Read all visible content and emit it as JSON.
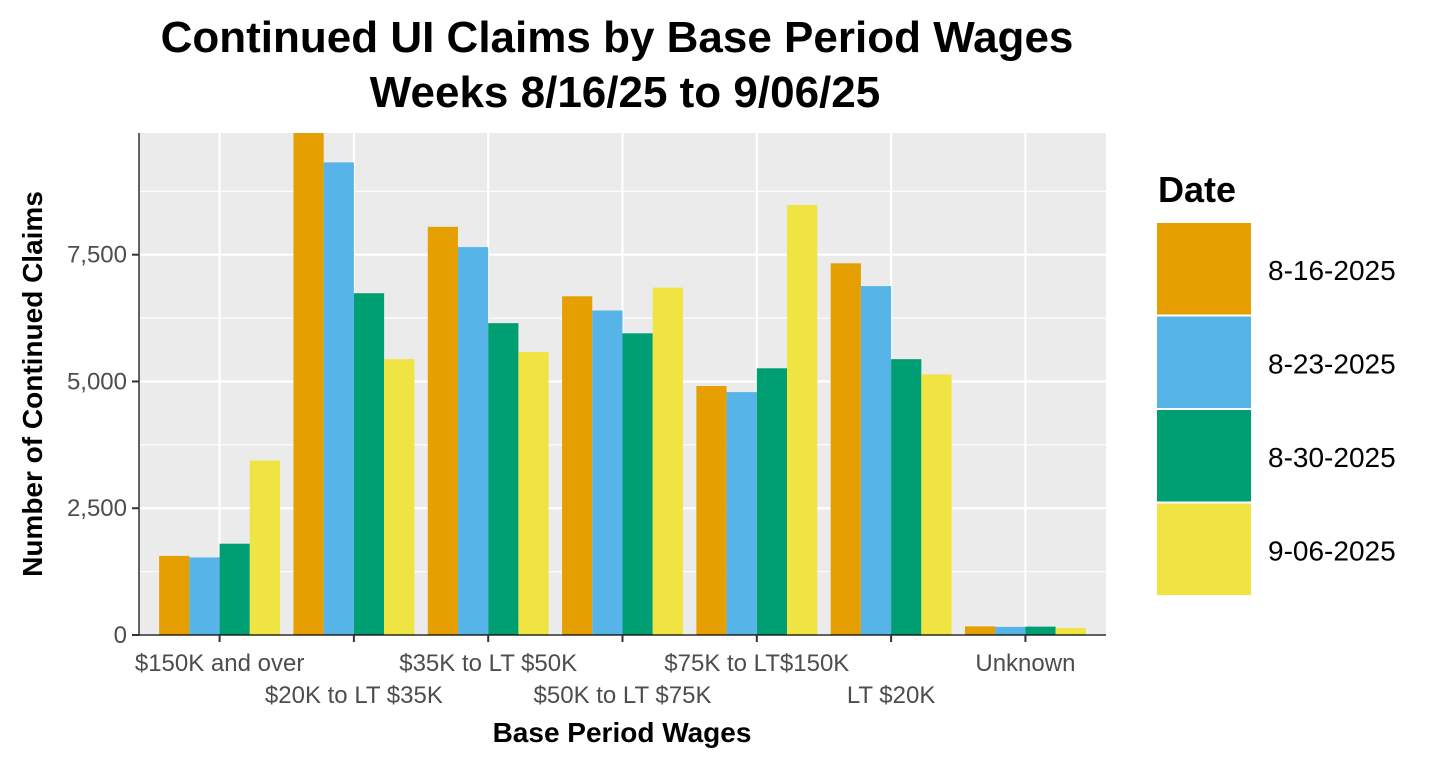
{
  "chart_data": {
    "type": "bar",
    "title": "Continued UI Claims by Base Period Wages",
    "subtitle": "Weeks 8/16/25 to 9/06/25",
    "xlabel": "Base Period Wages",
    "ylabel": "Number of Continued Claims",
    "ylim": [
      0,
      9900
    ],
    "yticks": [
      0,
      2500,
      5000,
      7500
    ],
    "ytick_labels": [
      "0",
      "2,500",
      "5,000",
      "7,500"
    ],
    "grid": true,
    "legend": {
      "title": "Date",
      "position": "right"
    },
    "categories": [
      "$150K and over",
      "$20K to LT $35K",
      "$35K to LT $50K",
      "$50K to LT $75K",
      "$75K to LT$150K",
      "LT $20K",
      "Unknown"
    ],
    "series": [
      {
        "name": "8-16-2025",
        "color": "#E69F00",
        "values": [
          1560,
          9900,
          8050,
          6680,
          4910,
          7330,
          170
        ]
      },
      {
        "name": "8-23-2025",
        "color": "#56B4E9",
        "values": [
          1530,
          9320,
          7650,
          6400,
          4790,
          6880,
          160
        ]
      },
      {
        "name": "8-30-2025",
        "color": "#009E73",
        "values": [
          1800,
          6740,
          6150,
          5950,
          5260,
          5440,
          165
        ]
      },
      {
        "name": "9-06-2025",
        "color": "#F0E442",
        "values": [
          3440,
          5440,
          5580,
          6850,
          8480,
          5140,
          140
        ]
      }
    ]
  }
}
